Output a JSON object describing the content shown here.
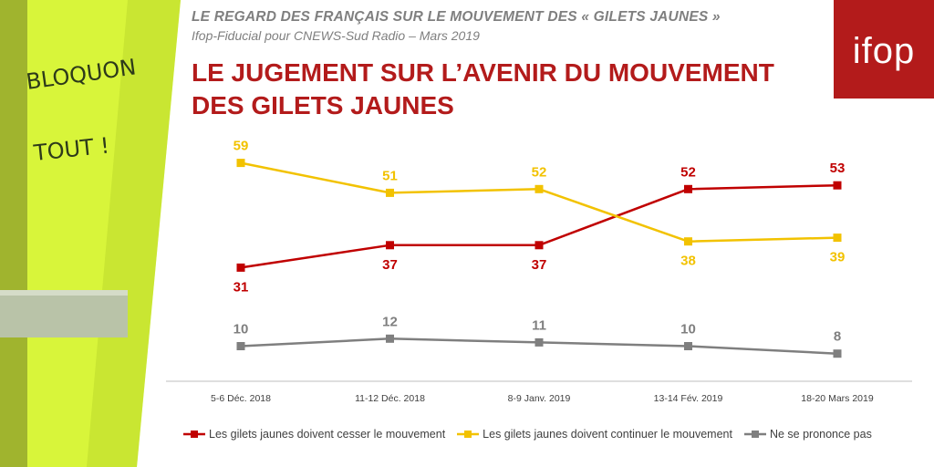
{
  "header": {
    "kicker": "LE REGARD DES FRANÇAIS SUR LE MOUVEMENT DES « GILETS JAUNES »",
    "subtitle": "Ifop-Fiducial pour CNEWS-Sud Radio – Mars 2019",
    "title": "LE JUGEMENT SUR L’AVENIR DU MOUVEMENT DES GILETS JAUNES"
  },
  "logo": {
    "text": "ifop"
  },
  "photo": {
    "vest_text_line1": "BLOQUON",
    "vest_text_line2": "TOUT !"
  },
  "chart_data": {
    "type": "line",
    "title": "LE JUGEMENT SUR L’AVENIR DU MOUVEMENT DES GILETS JAUNES",
    "xlabel": "",
    "ylabel": "",
    "ylim": [
      0,
      70
    ],
    "grid": false,
    "legend_position": "bottom",
    "categories": [
      "5-6 Déc. 2018",
      "11-12 Déc. 2018",
      "8-9 Janv. 2019",
      "13-14 Fév. 2019",
      "18-20 Mars 2019"
    ],
    "series": [
      {
        "name": "Les gilets jaunes doivent cesser le mouvement",
        "color": "#c00000",
        "values": [
          31,
          37,
          37,
          52,
          53
        ]
      },
      {
        "name": "Les gilets jaunes doivent continuer le mouvement",
        "color": "#f2c200",
        "values": [
          59,
          51,
          52,
          38,
          39
        ]
      },
      {
        "name": "Ne se prononce pas",
        "color": "#7f7f7f",
        "values": [
          10,
          12,
          11,
          10,
          8
        ]
      }
    ]
  }
}
